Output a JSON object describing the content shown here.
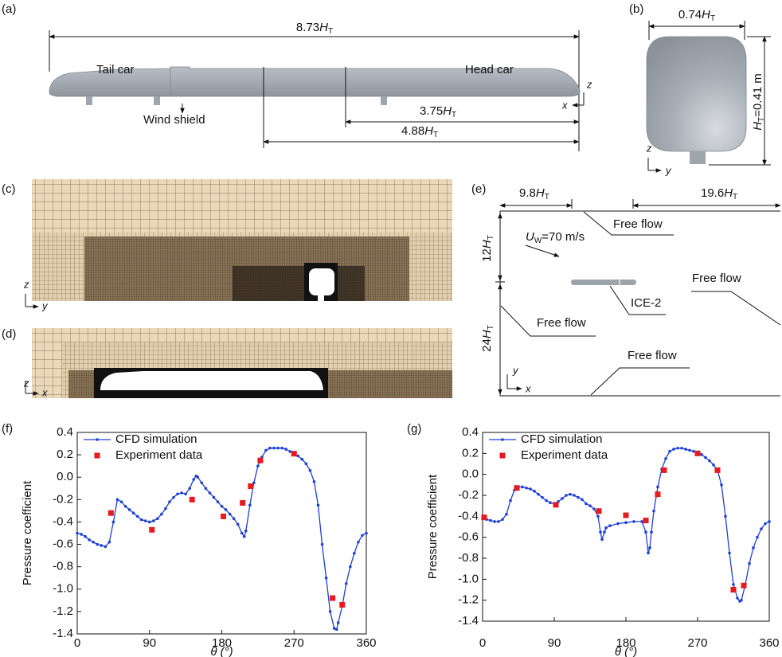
{
  "diagram": {
    "a": {
      "label": "(a)",
      "dim_total": [
        "8.73",
        "H",
        "T"
      ],
      "dim_short": [
        "3.75",
        "H",
        "T"
      ],
      "dim_mid": [
        "4.88",
        "H",
        "T"
      ],
      "tail": "Tail car",
      "head": "Head car",
      "shield": "Wind shield",
      "axis_z": "z",
      "axis_x": "x"
    },
    "b": {
      "label": "(b)",
      "width": [
        "0.74",
        "H",
        "T"
      ],
      "height": [
        "H",
        "T",
        "=0.41 m"
      ],
      "axis_z": "z",
      "axis_y": "y"
    },
    "c": {
      "label": "(c)",
      "axis_z": "z",
      "axis_y": "y"
    },
    "d": {
      "label": "(d)",
      "axis_z": "z",
      "axis_x": "x"
    },
    "e": {
      "label": "(e)",
      "dim_left": [
        "9.8",
        "H",
        "T"
      ],
      "dim_right": [
        "19.6",
        "H",
        "T"
      ],
      "dim_top": [
        "12",
        "H",
        "T"
      ],
      "dim_bottom": [
        "24",
        "H",
        "T"
      ],
      "inflow": [
        "U",
        "W",
        "=70 m/s"
      ],
      "free_top": "Free flow",
      "free_right": "Free flow",
      "free_left": "Free flow",
      "free_bottom": "Free flow",
      "train": "ICE-2",
      "axis_y": "y",
      "axis_x": "x"
    }
  },
  "chart_data": [
    {
      "type": "line",
      "panel_label": "(f)",
      "x_label": "θ (°)",
      "y_label": "Pressure coefficient",
      "xlim": [
        0,
        360
      ],
      "xticks": [
        0,
        90,
        180,
        270,
        360
      ],
      "ylim": [
        -1.4,
        0.4
      ],
      "yticks": [
        0.4,
        0.2,
        {
          "value": 0,
          "label": "0.0"
        },
        -0.2,
        -0.4,
        -0.6,
        -0.8,
        {
          "value": -1,
          "label": "-1.0"
        },
        -1.2,
        -1.4
      ],
      "series": [
        {
          "name": "CFD simulation",
          "color": "#1f3fd6",
          "mode": "line-markers",
          "x": [
            0,
            5,
            10,
            15,
            20,
            25,
            30,
            35,
            40,
            45,
            50,
            55,
            60,
            65,
            70,
            75,
            80,
            85,
            90,
            95,
            100,
            105,
            110,
            115,
            120,
            125,
            130,
            135,
            140,
            145,
            148,
            150,
            155,
            160,
            165,
            170,
            175,
            180,
            185,
            190,
            195,
            200,
            205,
            208,
            210,
            215,
            220,
            225,
            230,
            235,
            240,
            245,
            250,
            255,
            260,
            265,
            270,
            275,
            280,
            285,
            290,
            295,
            300,
            305,
            310,
            315,
            320,
            323,
            325,
            330,
            335,
            340,
            345,
            350,
            355,
            360
          ],
          "values": [
            -0.5,
            -0.51,
            -0.53,
            -0.56,
            -0.58,
            -0.6,
            -0.61,
            -0.62,
            -0.58,
            -0.4,
            -0.2,
            -0.22,
            -0.26,
            -0.29,
            -0.32,
            -0.35,
            -0.38,
            -0.39,
            -0.4,
            -0.39,
            -0.37,
            -0.33,
            -0.28,
            -0.22,
            -0.18,
            -0.15,
            -0.14,
            -0.15,
            -0.1,
            -0.02,
            0.01,
            0,
            -0.05,
            -0.1,
            -0.14,
            -0.18,
            -0.22,
            -0.26,
            -0.29,
            -0.33,
            -0.37,
            -0.42,
            -0.5,
            -0.53,
            -0.48,
            -0.25,
            -0.05,
            0.1,
            0.18,
            0.24,
            0.26,
            0.26,
            0.26,
            0.26,
            0.25,
            0.23,
            0.21,
            0.19,
            0.16,
            0.12,
            0.06,
            -0.04,
            -0.25,
            -0.6,
            -0.9,
            -1.2,
            -1.35,
            -1.36,
            -1.3,
            -1.15,
            -0.95,
            -0.8,
            -0.68,
            -0.58,
            -0.52,
            -0.5
          ]
        },
        {
          "name": "Experiment data",
          "color": "#e8191f",
          "mode": "markers",
          "x": [
            42,
            93,
            143,
            182,
            206,
            216,
            228,
            270,
            318,
            330
          ],
          "values": [
            -0.32,
            -0.47,
            -0.2,
            -0.35,
            -0.23,
            -0.08,
            0.15,
            0.21,
            -1.08,
            -1.14
          ]
        }
      ]
    },
    {
      "type": "line",
      "panel_label": "(g)",
      "x_label": "θ (°)",
      "y_label": "Pressure coefficient",
      "xlim": [
        0,
        360
      ],
      "xticks": [
        0,
        90,
        180,
        270,
        360
      ],
      "ylim": [
        -1.4,
        0.4
      ],
      "yticks": [
        0.4,
        0.2,
        {
          "value": 0,
          "label": "0.0"
        },
        -0.2,
        -0.4,
        -0.6,
        -0.8,
        {
          "value": -1,
          "label": "-1.0"
        },
        -1.2,
        -1.4
      ],
      "series": [
        {
          "name": "CFD simulation",
          "color": "#1f3fd6",
          "mode": "line-markers",
          "x": [
            0,
            5,
            10,
            15,
            20,
            25,
            30,
            35,
            40,
            45,
            50,
            55,
            60,
            65,
            70,
            75,
            80,
            85,
            90,
            95,
            100,
            105,
            110,
            115,
            120,
            125,
            130,
            135,
            140,
            145,
            148,
            150,
            153,
            155,
            160,
            170,
            180,
            190,
            200,
            205,
            208,
            210,
            212,
            215,
            220,
            225,
            230,
            235,
            240,
            245,
            250,
            255,
            260,
            265,
            270,
            275,
            280,
            285,
            290,
            295,
            300,
            305,
            310,
            315,
            320,
            323,
            325,
            330,
            335,
            340,
            345,
            350,
            355,
            360
          ],
          "values": [
            -0.42,
            -0.43,
            -0.44,
            -0.45,
            -0.45,
            -0.43,
            -0.38,
            -0.25,
            -0.15,
            -0.12,
            -0.12,
            -0.13,
            -0.14,
            -0.16,
            -0.19,
            -0.22,
            -0.25,
            -0.27,
            -0.28,
            -0.26,
            -0.23,
            -0.2,
            -0.19,
            -0.2,
            -0.22,
            -0.24,
            -0.28,
            -0.3,
            -0.33,
            -0.4,
            -0.55,
            -0.62,
            -0.55,
            -0.51,
            -0.49,
            -0.47,
            -0.46,
            -0.45,
            -0.45,
            -0.55,
            -0.75,
            -0.7,
            -0.55,
            -0.35,
            -0.12,
            0.05,
            0.15,
            0.22,
            0.24,
            0.25,
            0.25,
            0.24,
            0.23,
            0.22,
            0.21,
            0.19,
            0.16,
            0.13,
            0.09,
            0.04,
            -0.1,
            -0.4,
            -0.75,
            -1.05,
            -1.18,
            -1.21,
            -1.2,
            -1.05,
            -0.85,
            -0.7,
            -0.6,
            -0.52,
            -0.47,
            -0.45
          ]
        },
        {
          "name": "Experiment data",
          "color": "#e8191f",
          "mode": "markers",
          "x": [
            2,
            43,
            92,
            146,
            180,
            205,
            220,
            228,
            270,
            295,
            315,
            328
          ],
          "values": [
            -0.41,
            -0.13,
            -0.29,
            -0.35,
            -0.39,
            -0.44,
            -0.19,
            0.04,
            0.2,
            0.04,
            -1.1,
            -1.06
          ]
        }
      ]
    }
  ]
}
